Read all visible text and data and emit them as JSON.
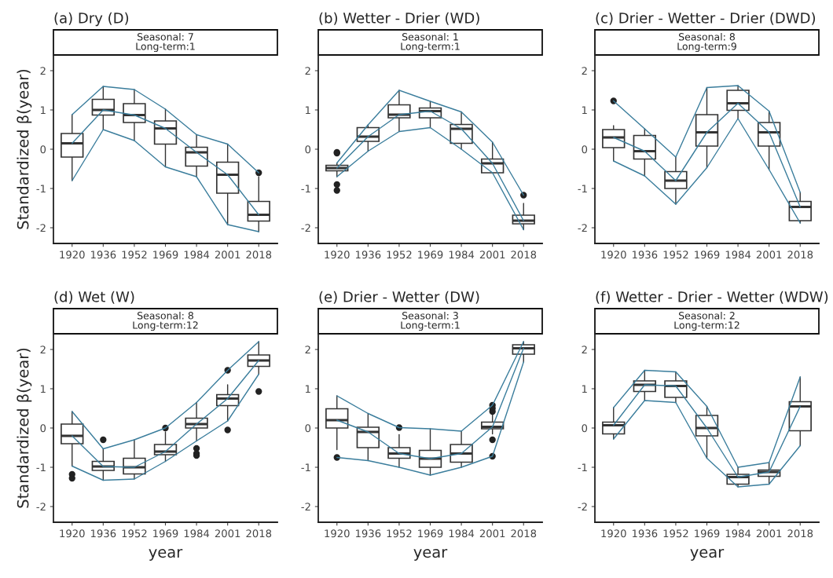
{
  "chart_data": [
    {
      "type": "box",
      "title": "(a) Dry (D)",
      "subtitle": "Seasonal: 7\nLong-term:1",
      "ylabel": "Standardized β(year)",
      "categories": [
        "1920",
        "1936",
        "1952",
        "1969",
        "1984",
        "2001",
        "2018"
      ],
      "ylim": [
        -2.4,
        2.4
      ],
      "yticks": [
        -2,
        -1,
        0,
        1,
        2
      ],
      "grid": false,
      "boxes": [
        {
          "low": -0.8,
          "q1": -0.2,
          "median": 0.15,
          "q3": 0.4,
          "high": 0.88
        },
        {
          "low": 0.5,
          "q1": 0.87,
          "median": 1.0,
          "q3": 1.27,
          "high": 1.6
        },
        {
          "low": 0.22,
          "q1": 0.68,
          "median": 0.87,
          "q3": 1.16,
          "high": 1.52
        },
        {
          "low": -0.45,
          "q1": 0.13,
          "median": 0.53,
          "q3": 0.72,
          "high": 1.02
        },
        {
          "low": -0.7,
          "q1": -0.43,
          "median": -0.08,
          "q3": 0.05,
          "high": 0.37
        },
        {
          "low": -1.92,
          "q1": -1.12,
          "median": -0.65,
          "q3": -0.33,
          "high": 0.13
        },
        {
          "low": -2.1,
          "q1": -1.83,
          "median": -1.67,
          "q3": -1.33,
          "high": -0.7,
          "outliers": [
            -0.6
          ]
        }
      ],
      "series": [
        {
          "type": "line",
          "color": "#3a7d9c",
          "values": [
            0.88,
            1.6,
            1.52,
            1.02,
            0.37,
            0.13,
            -0.6
          ]
        },
        {
          "type": "line",
          "color": "#3a7d9c",
          "values": [
            0.15,
            1.0,
            0.87,
            0.53,
            -0.08,
            -0.65,
            -1.67
          ]
        },
        {
          "type": "line",
          "color": "#3a7d9c",
          "values": [
            -0.8,
            0.5,
            0.22,
            -0.45,
            -0.7,
            -1.92,
            -2.1
          ]
        }
      ]
    },
    {
      "type": "box",
      "title": "(b) Wetter - Drier (WD)",
      "subtitle": "Seasonal: 1\nLong-term:1",
      "categories": [
        "1920",
        "1936",
        "1952",
        "1969",
        "1984",
        "2001",
        "2018"
      ],
      "ylim": [
        -2.4,
        2.4
      ],
      "yticks": [
        -2,
        -1,
        0,
        1,
        2
      ],
      "grid": false,
      "boxes": [
        {
          "low": -0.7,
          "q1": -0.55,
          "median": -0.48,
          "q3": -0.41,
          "high": -0.35,
          "outliers": [
            -0.08,
            -0.1,
            -0.9,
            -1.05
          ]
        },
        {
          "low": -0.05,
          "q1": 0.2,
          "median": 0.32,
          "q3": 0.55,
          "high": 0.62
        },
        {
          "low": 0.45,
          "q1": 0.8,
          "median": 0.88,
          "q3": 1.13,
          "high": 1.5
        },
        {
          "low": 0.55,
          "q1": 0.8,
          "median": 0.97,
          "q3": 1.05,
          "high": 1.22
        },
        {
          "low": 0.0,
          "q1": 0.15,
          "median": 0.52,
          "q3": 0.63,
          "high": 0.95
        },
        {
          "low": -0.6,
          "q1": -0.6,
          "median": -0.36,
          "q3": -0.25,
          "high": 0.18
        },
        {
          "low": -2.05,
          "q1": -1.9,
          "median": -1.82,
          "q3": -1.68,
          "high": -1.38,
          "outliers": [
            -1.17
          ]
        }
      ],
      "series": [
        {
          "type": "line",
          "color": "#3a7d9c",
          "values": [
            -0.35,
            0.62,
            1.5,
            1.22,
            0.95,
            0.18,
            -1.17
          ]
        },
        {
          "type": "line",
          "color": "#3a7d9c",
          "values": [
            -0.48,
            0.32,
            0.88,
            0.97,
            0.52,
            -0.36,
            -1.82
          ]
        },
        {
          "type": "line",
          "color": "#3a7d9c",
          "values": [
            -0.7,
            -0.05,
            0.45,
            0.55,
            0.0,
            -0.6,
            -2.05
          ]
        }
      ]
    },
    {
      "type": "box",
      "title": "(c) Drier - Wetter - Drier (DWD)",
      "subtitle": "Seasonal: 8\nLong-term:9",
      "categories": [
        "1920",
        "1936",
        "1952",
        "1969",
        "1984",
        "2001",
        "2018"
      ],
      "ylim": [
        -2.4,
        2.4
      ],
      "yticks": [
        -2,
        -1,
        0,
        1,
        2
      ],
      "grid": false,
      "boxes": [
        {
          "low": -0.3,
          "q1": 0.04,
          "median": 0.3,
          "q3": 0.5,
          "high": 0.6,
          "outliers": [
            1.23
          ]
        },
        {
          "low": -0.68,
          "q1": -0.25,
          "median": -0.05,
          "q3": 0.35,
          "high": 0.52
        },
        {
          "low": -1.4,
          "q1": -1.0,
          "median": -0.8,
          "q3": -0.57,
          "high": -0.2
        },
        {
          "low": -0.47,
          "q1": 0.08,
          "median": 0.43,
          "q3": 0.88,
          "high": 1.57
        },
        {
          "low": 0.78,
          "q1": 0.99,
          "median": 1.17,
          "q3": 1.5,
          "high": 1.62
        },
        {
          "low": -0.52,
          "q1": 0.08,
          "median": 0.43,
          "q3": 0.68,
          "high": 0.97
        },
        {
          "low": -1.88,
          "q1": -1.82,
          "median": -1.47,
          "q3": -1.33,
          "high": -1.1
        }
      ],
      "series": [
        {
          "type": "line",
          "color": "#3a7d9c",
          "values": [
            1.23,
            0.52,
            -0.2,
            1.57,
            1.62,
            0.97,
            -1.1
          ]
        },
        {
          "type": "line",
          "color": "#3a7d9c",
          "values": [
            0.3,
            -0.05,
            -0.8,
            0.43,
            1.17,
            0.43,
            -1.47
          ]
        },
        {
          "type": "line",
          "color": "#3a7d9c",
          "values": [
            -0.3,
            -0.68,
            -1.4,
            -0.47,
            0.78,
            -0.52,
            -1.88
          ]
        }
      ]
    },
    {
      "type": "box",
      "title": "(d) Wet (W)",
      "subtitle": "Seasonal: 8\nLong-term:12",
      "xlabel": "year",
      "ylabel": "Standardized β(year)",
      "categories": [
        "1920",
        "1936",
        "1952",
        "1969",
        "1984",
        "2001",
        "2018"
      ],
      "ylim": [
        -2.4,
        2.4
      ],
      "yticks": [
        -2,
        -1,
        0,
        1,
        2
      ],
      "grid": false,
      "boxes": [
        {
          "low": -0.97,
          "q1": -0.4,
          "median": -0.2,
          "q3": 0.1,
          "high": 0.42,
          "outliers": [
            -1.18,
            -1.28
          ]
        },
        {
          "low": -1.33,
          "q1": -1.08,
          "median": -0.98,
          "q3": -0.85,
          "high": -0.53,
          "outliers": [
            -0.3
          ]
        },
        {
          "low": -1.3,
          "q1": -1.17,
          "median": -1.0,
          "q3": -0.77,
          "high": -0.3
        },
        {
          "low": -0.85,
          "q1": -0.68,
          "median": -0.6,
          "q3": -0.42,
          "high": -0.1,
          "outliers": [
            0.0
          ]
        },
        {
          "low": -0.33,
          "q1": 0.0,
          "median": 0.1,
          "q3": 0.25,
          "high": 0.65,
          "outliers": [
            -0.52,
            -0.65,
            -0.7
          ]
        },
        {
          "low": 0.18,
          "q1": 0.57,
          "median": 0.75,
          "q3": 0.85,
          "high": 1.1,
          "outliers": [
            1.47,
            -0.05
          ]
        },
        {
          "low": 1.37,
          "q1": 1.57,
          "median": 1.72,
          "q3": 1.86,
          "high": 2.2,
          "outliers": [
            0.93
          ]
        }
      ],
      "series": [
        {
          "type": "line",
          "color": "#3a7d9c",
          "values": [
            0.42,
            -0.53,
            -0.3,
            0.0,
            0.65,
            1.47,
            2.2
          ]
        },
        {
          "type": "line",
          "color": "#3a7d9c",
          "values": [
            -0.2,
            -0.98,
            -1.0,
            -0.6,
            0.1,
            0.75,
            1.72
          ]
        },
        {
          "type": "line",
          "color": "#3a7d9c",
          "values": [
            -0.97,
            -1.33,
            -1.3,
            -0.85,
            -0.33,
            0.18,
            1.37
          ]
        }
      ]
    },
    {
      "type": "box",
      "title": "(e) Drier - Wetter (DW)",
      "subtitle": "Seasonal: 3\nLong-term:1",
      "xlabel": "year",
      "categories": [
        "1920",
        "1936",
        "1952",
        "1969",
        "1984",
        "2001",
        "2018"
      ],
      "ylim": [
        -2.4,
        2.4
      ],
      "yticks": [
        -2,
        -1,
        0,
        1,
        2
      ],
      "grid": false,
      "boxes": [
        {
          "low": -0.55,
          "q1": 0.0,
          "median": 0.2,
          "q3": 0.49,
          "high": 0.82,
          "outliers": [
            -0.75
          ]
        },
        {
          "low": -0.83,
          "q1": -0.5,
          "median": -0.1,
          "q3": 0.02,
          "high": 0.37
        },
        {
          "low": -1.0,
          "q1": -0.77,
          "median": -0.65,
          "q3": -0.5,
          "high": -0.17,
          "outliers": [
            0.01
          ]
        },
        {
          "low": -1.2,
          "q1": -1.0,
          "median": -0.78,
          "q3": -0.57,
          "high": -0.02
        },
        {
          "low": -1.0,
          "q1": -0.87,
          "median": -0.65,
          "q3": -0.42,
          "high": -0.08
        },
        {
          "low": -0.15,
          "q1": -0.02,
          "median": 0.03,
          "q3": 0.15,
          "high": 0.35,
          "outliers": [
            0.58,
            0.5,
            0.42,
            -0.3,
            -0.72
          ]
        },
        {
          "low": 1.68,
          "q1": 1.88,
          "median": 2.03,
          "q3": 2.12,
          "high": 2.2
        }
      ],
      "series": [
        {
          "type": "line",
          "color": "#3a7d9c",
          "values": [
            0.82,
            0.37,
            0.01,
            -0.02,
            -0.08,
            0.58,
            2.2
          ]
        },
        {
          "type": "line",
          "color": "#3a7d9c",
          "values": [
            0.2,
            -0.1,
            -0.65,
            -0.78,
            -0.65,
            0.03,
            2.03
          ]
        },
        {
          "type": "line",
          "color": "#3a7d9c",
          "values": [
            -0.75,
            -0.83,
            -1.0,
            -1.2,
            -1.0,
            -0.72,
            1.68
          ]
        }
      ]
    },
    {
      "type": "box",
      "title": "(f) Wetter - Drier - Wetter (WDW)",
      "subtitle": "Seasonal: 2\nLong-term:12",
      "xlabel": "year",
      "categories": [
        "1920",
        "1936",
        "1952",
        "1969",
        "1984",
        "2001",
        "2018"
      ],
      "ylim": [
        -2.4,
        2.4
      ],
      "yticks": [
        -2,
        -1,
        0,
        1,
        2
      ],
      "grid": false,
      "boxes": [
        {
          "low": -0.28,
          "q1": -0.15,
          "median": 0.07,
          "q3": 0.15,
          "high": 0.52
        },
        {
          "low": 0.7,
          "q1": 0.93,
          "median": 1.1,
          "q3": 1.2,
          "high": 1.47
        },
        {
          "low": 0.65,
          "q1": 0.78,
          "median": 1.07,
          "q3": 1.2,
          "high": 1.43
        },
        {
          "low": -0.77,
          "q1": -0.2,
          "median": 0.0,
          "q3": 0.32,
          "high": 0.55
        },
        {
          "low": -1.5,
          "q1": -1.43,
          "median": -1.25,
          "q3": -1.18,
          "high": -1.0
        },
        {
          "low": -1.43,
          "q1": -1.23,
          "median": -1.12,
          "q3": -1.07,
          "high": -0.88
        },
        {
          "low": -0.45,
          "q1": -0.07,
          "median": 0.55,
          "q3": 0.67,
          "high": 1.3
        }
      ],
      "series": [
        {
          "type": "line",
          "color": "#3a7d9c",
          "values": [
            0.52,
            1.47,
            1.43,
            0.55,
            -1.0,
            -0.88,
            1.3
          ]
        },
        {
          "type": "line",
          "color": "#3a7d9c",
          "values": [
            0.07,
            1.1,
            1.07,
            0.0,
            -1.25,
            -1.12,
            0.55
          ]
        },
        {
          "type": "line",
          "color": "#3a7d9c",
          "values": [
            -0.28,
            0.7,
            0.65,
            -0.77,
            -1.5,
            -1.43,
            -0.45
          ]
        }
      ]
    }
  ]
}
